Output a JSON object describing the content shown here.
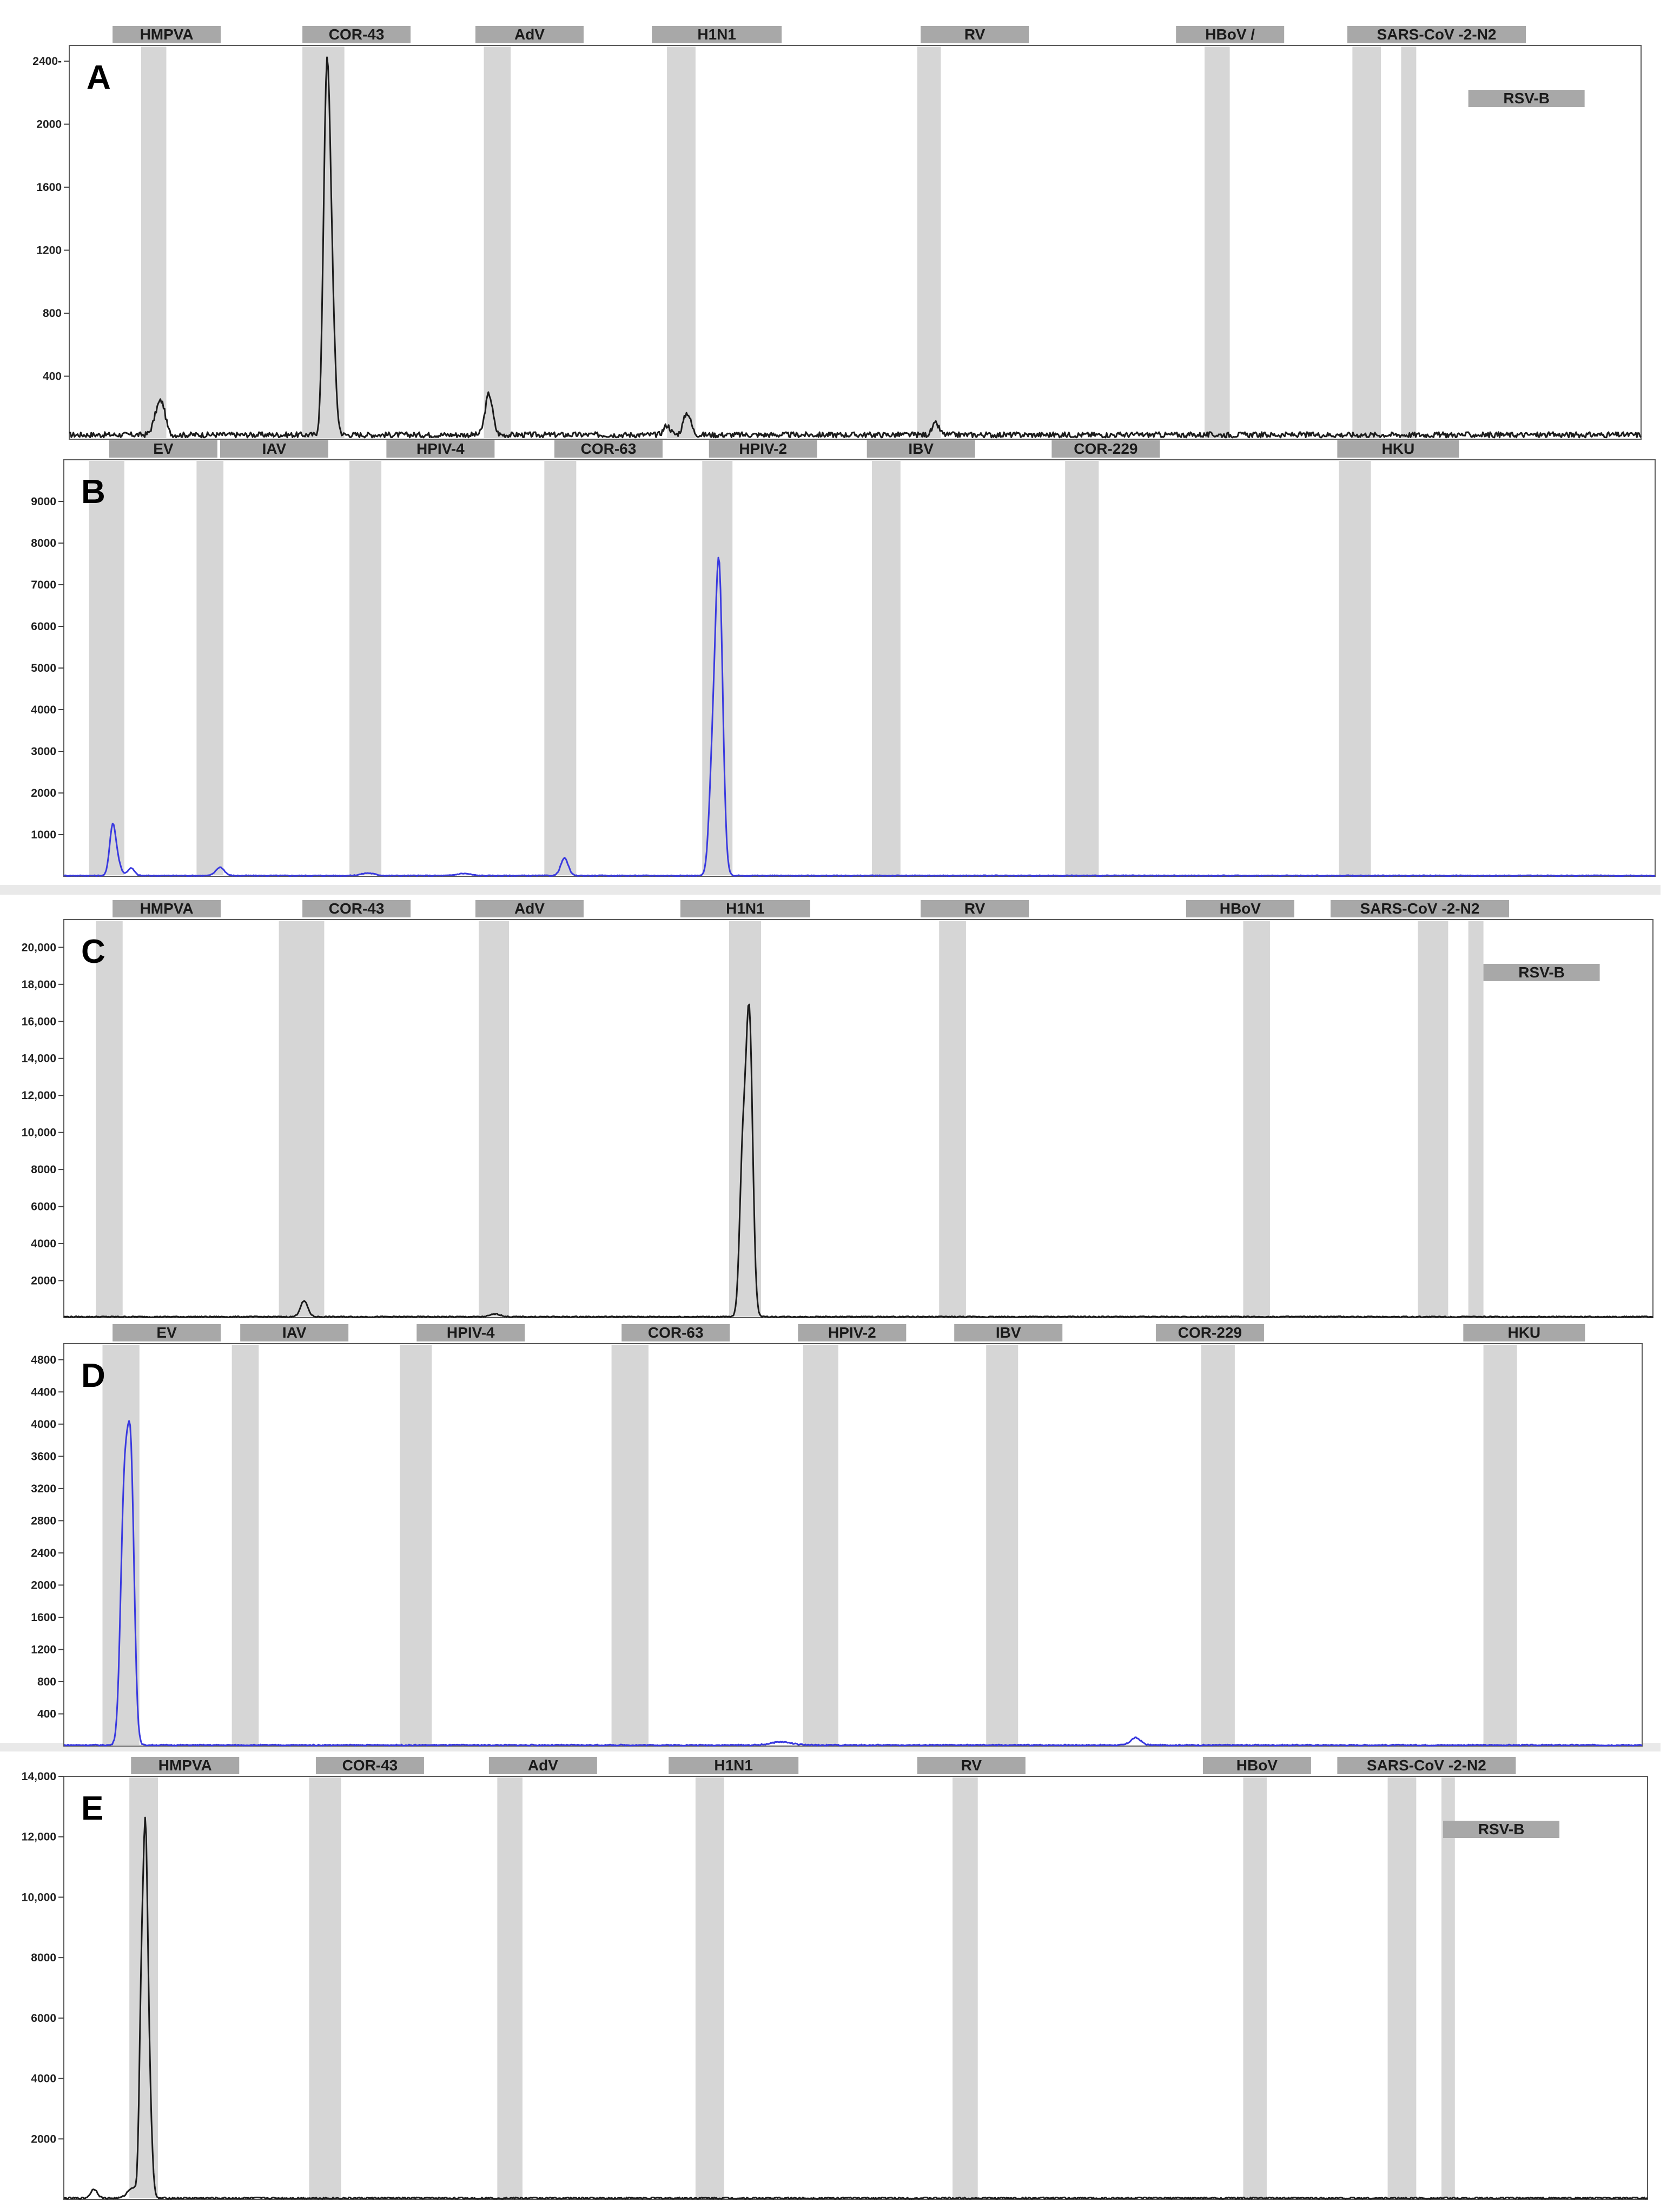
{
  "colors": {
    "trace_black": "#1c1c1c",
    "trace_blue": "#3a3ae0",
    "bin": "#d6d6d6",
    "label_box": "#a8a8a8"
  },
  "chart_data": [
    {
      "panel": "A",
      "type": "line",
      "trace_color": "black",
      "bins": [
        {
          "label": "HMPVA",
          "x": [
            0.084,
            0.099
          ]
        },
        {
          "label": "COR-43",
          "x": [
            0.18,
            0.205
          ]
        },
        {
          "label": "AdV",
          "x": [
            0.288,
            0.304
          ]
        },
        {
          "label": "H1N1",
          "x": [
            0.397,
            0.414
          ]
        },
        {
          "label": "RV",
          "x": [
            0.546,
            0.56
          ]
        },
        {
          "label": "HBoV /",
          "x": [
            0.717,
            0.732
          ]
        },
        {
          "label": "SARS-CoV -2-N2",
          "x": [
            0.805,
            0.822
          ]
        },
        {
          "label": "RSV-B",
          "x": [
            0.834,
            0.843
          ]
        }
      ],
      "label_slots": [
        {
          "label": "HMPVA",
          "x": 0.067,
          "row": 0
        },
        {
          "label": "COR-43",
          "x": 0.18,
          "row": 0
        },
        {
          "label": "AdV",
          "x": 0.283,
          "row": 0
        },
        {
          "label": "H1N1",
          "x": 0.388,
          "row": 0
        },
        {
          "label": "RV",
          "x": 0.548,
          "row": 0
        },
        {
          "label": "HBoV /",
          "x": 0.7,
          "row": 0
        },
        {
          "label": "SARS-CoV -2-N2",
          "x": 0.802,
          "row": 0
        },
        {
          "label": "RSV-B",
          "x": 0.874,
          "row": 1
        }
      ],
      "yticks": [
        400,
        800,
        1200,
        1600,
        2000,
        2400
      ],
      "ytick_labels": [
        "400",
        "800",
        "1200",
        "1600",
        "2000",
        "2400-"
      ],
      "ylim": [
        0,
        2500
      ],
      "noise": 35,
      "peaks": [
        {
          "x": 0.094,
          "y": 150,
          "w": 0.0025
        },
        {
          "x": 0.097,
          "y": 120,
          "w": 0.002
        },
        {
          "x": 0.194,
          "y": 1560,
          "w": 0.0018
        },
        {
          "x": 0.196,
          "y": 1050,
          "w": 0.002
        },
        {
          "x": 0.198,
          "y": 350,
          "w": 0.002
        },
        {
          "x": 0.291,
          "y": 260,
          "w": 0.0022
        },
        {
          "x": 0.397,
          "y": 60,
          "w": 0.002
        },
        {
          "x": 0.409,
          "y": 140,
          "w": 0.0022
        },
        {
          "x": 0.557,
          "y": 70,
          "w": 0.002
        }
      ]
    },
    {
      "panel": "B",
      "type": "line",
      "trace_color": "blue",
      "bins": [
        {
          "label": "EV",
          "x": [
            0.053,
            0.074
          ]
        },
        {
          "label": "IAV",
          "x": [
            0.117,
            0.133
          ]
        },
        {
          "label": "HPIV-4",
          "x": [
            0.208,
            0.227
          ]
        },
        {
          "label": "COR-63",
          "x": [
            0.324,
            0.343
          ]
        },
        {
          "label": "HPIV-2",
          "x": [
            0.418,
            0.436
          ]
        },
        {
          "label": "IBV",
          "x": [
            0.519,
            0.536
          ]
        },
        {
          "label": "COR-229",
          "x": [
            0.634,
            0.654
          ]
        },
        {
          "label": "HKU",
          "x": [
            0.797,
            0.816
          ]
        }
      ],
      "label_slots": [
        {
          "label": "EV",
          "x": 0.065,
          "row": 0
        },
        {
          "label": "IAV",
          "x": 0.131,
          "row": 0
        },
        {
          "label": "HPIV-4",
          "x": 0.23,
          "row": 0
        },
        {
          "label": "COR-63",
          "x": 0.33,
          "row": 0
        },
        {
          "label": "HPIV-2",
          "x": 0.422,
          "row": 0
        },
        {
          "label": "IBV",
          "x": 0.516,
          "row": 0
        },
        {
          "label": "COR-229",
          "x": 0.626,
          "row": 0
        },
        {
          "label": "HKU",
          "x": 0.796,
          "row": 0
        }
      ],
      "yticks": [
        1000,
        2000,
        3000,
        4000,
        5000,
        6000,
        7000,
        8000,
        9000
      ],
      "ytick_labels": [
        "1000",
        "2000",
        "3000",
        "4000",
        "5000",
        "6000",
        "7000",
        "8000",
        "9000"
      ],
      "ylim": [
        0,
        10000
      ],
      "noise": 20,
      "peaks": [
        {
          "x": 0.067,
          "y": 1150,
          "w": 0.0018
        },
        {
          "x": 0.07,
          "y": 300,
          "w": 0.002
        },
        {
          "x": 0.078,
          "y": 180,
          "w": 0.002
        },
        {
          "x": 0.131,
          "y": 200,
          "w": 0.0025
        },
        {
          "x": 0.219,
          "y": 60,
          "w": 0.004
        },
        {
          "x": 0.276,
          "y": 50,
          "w": 0.004
        },
        {
          "x": 0.336,
          "y": 420,
          "w": 0.0022
        },
        {
          "x": 0.424,
          "y": 2300,
          "w": 0.002
        },
        {
          "x": 0.428,
          "y": 7300,
          "w": 0.0022
        }
      ]
    },
    {
      "panel": "C",
      "type": "line",
      "trace_color": "black",
      "bins": [
        {
          "label": "HMPVA",
          "x": [
            0.057,
            0.073
          ]
        },
        {
          "label": "COR-43",
          "x": [
            0.166,
            0.193
          ]
        },
        {
          "label": "AdV",
          "x": [
            0.285,
            0.303
          ]
        },
        {
          "label": "H1N1",
          "x": [
            0.434,
            0.453
          ]
        },
        {
          "label": "RV",
          "x": [
            0.559,
            0.575
          ]
        },
        {
          "label": "HBoV",
          "x": [
            0.74,
            0.756
          ]
        },
        {
          "label": "SARS-CoV -2-N2",
          "x": [
            0.844,
            0.862
          ]
        },
        {
          "label": "RSV-B",
          "x": [
            0.874,
            0.883
          ]
        }
      ],
      "label_slots": [
        {
          "label": "HMPVA",
          "x": 0.067,
          "row": 0
        },
        {
          "label": "COR-43",
          "x": 0.18,
          "row": 0
        },
        {
          "label": "AdV",
          "x": 0.283,
          "row": 0
        },
        {
          "label": "H1N1",
          "x": 0.405,
          "row": 0
        },
        {
          "label": "RV",
          "x": 0.548,
          "row": 0
        },
        {
          "label": "HBoV",
          "x": 0.706,
          "row": 0
        },
        {
          "label": "SARS-CoV -2-N2",
          "x": 0.792,
          "row": 0
        },
        {
          "label": "RSV-B",
          "x": 0.883,
          "row": 1
        }
      ],
      "yticks": [
        2000,
        4000,
        6000,
        8000,
        10000,
        12000,
        14000,
        16000,
        18000,
        20000
      ],
      "ytick_labels": [
        "2000",
        "4000",
        "6000",
        "8000",
        "10,000",
        "12,000",
        "14,000",
        "16,000",
        "18,000",
        "20,000"
      ],
      "ylim": [
        0,
        21500
      ],
      "noise": 60,
      "peaks": [
        {
          "x": 0.181,
          "y": 850,
          "w": 0.0022
        },
        {
          "x": 0.295,
          "y": 150,
          "w": 0.003
        },
        {
          "x": 0.442,
          "y": 8000,
          "w": 0.0018
        },
        {
          "x": 0.446,
          "y": 16200,
          "w": 0.002
        }
      ]
    },
    {
      "panel": "D",
      "type": "line",
      "trace_color": "blue",
      "bins": [
        {
          "label": "EV",
          "x": [
            0.061,
            0.083
          ]
        },
        {
          "label": "IAV",
          "x": [
            0.138,
            0.154
          ]
        },
        {
          "label": "HPIV-4",
          "x": [
            0.238,
            0.257
          ]
        },
        {
          "label": "COR-63",
          "x": [
            0.364,
            0.386
          ]
        },
        {
          "label": "HPIV-2",
          "x": [
            0.478,
            0.499
          ]
        },
        {
          "label": "IBV",
          "x": [
            0.587,
            0.606
          ]
        },
        {
          "label": "COR-229",
          "x": [
            0.715,
            0.735
          ]
        },
        {
          "label": "HKU",
          "x": [
            0.883,
            0.903
          ]
        }
      ],
      "label_slots": [
        {
          "label": "EV",
          "x": 0.067,
          "row": 0
        },
        {
          "label": "IAV",
          "x": 0.143,
          "row": 0
        },
        {
          "label": "HPIV-4",
          "x": 0.248,
          "row": 0
        },
        {
          "label": "COR-63",
          "x": 0.37,
          "row": 0
        },
        {
          "label": "HPIV-2",
          "x": 0.475,
          "row": 0
        },
        {
          "label": "IBV",
          "x": 0.568,
          "row": 0
        },
        {
          "label": "COR-229",
          "x": 0.688,
          "row": 0
        },
        {
          "label": "HKU",
          "x": 0.871,
          "row": 0
        }
      ],
      "yticks": [
        400,
        800,
        1200,
        1600,
        2000,
        2400,
        2800,
        3200,
        3600,
        4000,
        4400,
        4800
      ],
      "ytick_labels": [
        "400",
        "800",
        "1200",
        "1600",
        "2000",
        "2400",
        "2800",
        "3200",
        "3600",
        "4000",
        "4400",
        "4800"
      ],
      "ylim": [
        0,
        5000
      ],
      "noise": 15,
      "peaks": [
        {
          "x": 0.074,
          "y": 3050,
          "w": 0.0022
        },
        {
          "x": 0.078,
          "y": 3200,
          "w": 0.002
        },
        {
          "x": 0.465,
          "y": 40,
          "w": 0.006
        },
        {
          "x": 0.676,
          "y": 90,
          "w": 0.003
        }
      ]
    },
    {
      "panel": "E",
      "type": "line",
      "trace_color": "black",
      "bins": [
        {
          "label": "HMPVA",
          "x": [
            0.077,
            0.094
          ]
        },
        {
          "label": "COR-43",
          "x": [
            0.184,
            0.203
          ]
        },
        {
          "label": "AdV",
          "x": [
            0.296,
            0.311
          ]
        },
        {
          "label": "H1N1",
          "x": [
            0.414,
            0.431
          ]
        },
        {
          "label": "RV",
          "x": [
            0.567,
            0.582
          ]
        },
        {
          "label": "HBoV",
          "x": [
            0.74,
            0.754
          ]
        },
        {
          "label": "SARS-CoV -2-N2",
          "x": [
            0.826,
            0.843
          ]
        },
        {
          "label": "RSV-B",
          "x": [
            0.858,
            0.866
          ]
        }
      ],
      "label_slots": [
        {
          "label": "HMPVA",
          "x": 0.078,
          "row": 0
        },
        {
          "label": "COR-43",
          "x": 0.188,
          "row": 0
        },
        {
          "label": "AdV",
          "x": 0.291,
          "row": 0
        },
        {
          "label": "H1N1",
          "x": 0.398,
          "row": 0
        },
        {
          "label": "RV",
          "x": 0.546,
          "row": 0
        },
        {
          "label": "HBoV",
          "x": 0.716,
          "row": 0
        },
        {
          "label": "SARS-CoV -2-N2",
          "x": 0.796,
          "row": 0
        },
        {
          "label": "RSV-B",
          "x": 0.859,
          "row": 1
        }
      ],
      "yticks": [
        2000,
        4000,
        6000,
        8000,
        10000,
        12000,
        14000
      ],
      "ytick_labels": [
        "2000",
        "4000",
        "6000",
        "8000",
        "10,000",
        "12,000",
        "14,000"
      ],
      "ylim": [
        0,
        14000
      ],
      "noise": 50,
      "peaks": [
        {
          "x": 0.056,
          "y": 300,
          "w": 0.002
        },
        {
          "x": 0.079,
          "y": 350,
          "w": 0.003
        },
        {
          "x": 0.084,
          "y": 5400,
          "w": 0.0012
        },
        {
          "x": 0.0865,
          "y": 11200,
          "w": 0.0014
        },
        {
          "x": 0.089,
          "y": 3000,
          "w": 0.0015
        }
      ]
    }
  ]
}
